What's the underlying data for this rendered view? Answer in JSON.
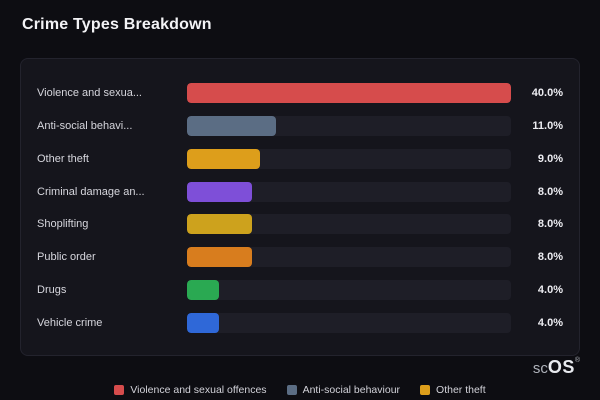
{
  "page": {
    "title": "Crime Types Breakdown"
  },
  "logo": {
    "prefix": "sc",
    "suffix": "OS",
    "reg": "®"
  },
  "chart_data": {
    "type": "bar",
    "orientation": "horizontal",
    "title": "Crime Types Breakdown",
    "xlabel": "",
    "ylabel": "",
    "xlim": [
      0,
      40
    ],
    "xmax": 40,
    "grid": false,
    "track_color": "#1e1e27",
    "rows": [
      {
        "label": "Violence and sexua...",
        "value": 40,
        "display": "40.0%",
        "color": "#d64c4c"
      },
      {
        "label": "Anti-social behavi...",
        "value": 11,
        "display": "11.0%",
        "color": "#5b6d84"
      },
      {
        "label": "Other theft",
        "value": 9,
        "display": "9.0%",
        "color": "#dd9e1b"
      },
      {
        "label": "Criminal damage an...",
        "value": 8,
        "display": "8.0%",
        "color": "#7e4fd8"
      },
      {
        "label": "Shoplifting",
        "value": 8,
        "display": "8.0%",
        "color": "#cda21d"
      },
      {
        "label": "Public order",
        "value": 8,
        "display": "8.0%",
        "color": "#d87d1e"
      },
      {
        "label": "Drugs",
        "value": 4,
        "display": "4.0%",
        "color": "#2aa952"
      },
      {
        "label": "Vehicle crime",
        "value": 4,
        "display": "4.0%",
        "color": "#2f68d8"
      }
    ],
    "legend": [
      {
        "label": "Violence and sexual offences",
        "color": "#d64c4c"
      },
      {
        "label": "Anti-social behaviour",
        "color": "#5b6d84"
      },
      {
        "label": "Other theft",
        "color": "#dd9e1b"
      }
    ],
    "legend_position": "bottom"
  }
}
